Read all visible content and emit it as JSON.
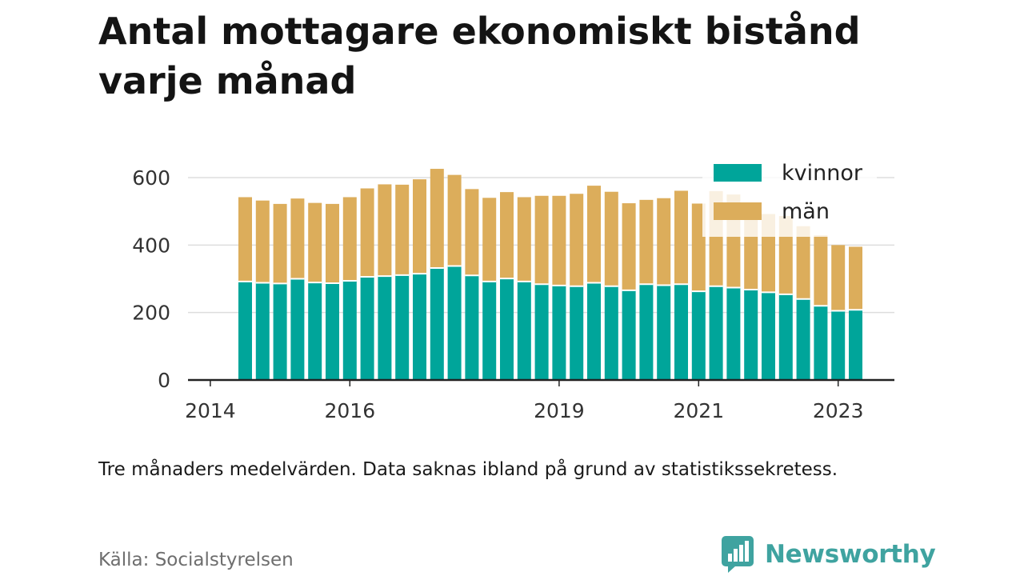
{
  "title_line1": "Antal mottagare ekonomiskt bistånd",
  "title_line2": "varje månad",
  "note": "Tre månaders medelvärden. Data saknas ibland på grund av statistikssekretess.",
  "source": "Källa: Socialstyrelsen",
  "brand": "Newsworthy",
  "colors": {
    "kvinnor": "#00a59a",
    "man": "#dcad5b",
    "brand": "#3fa3a0",
    "grid": "#dddddd",
    "axis": "#222222",
    "text": "#333333"
  },
  "chart_data": {
    "type": "bar",
    "stacked": true,
    "ylim": [
      0,
      600
    ],
    "yticks": [
      0,
      200,
      400,
      600
    ],
    "xticks": [
      "2014",
      "2016",
      "2019",
      "2021",
      "2023"
    ],
    "legend_position": "top-right",
    "grid": "horizontal",
    "categories": [
      "2014-07",
      "2014-10",
      "2015-01",
      "2015-04",
      "2015-07",
      "2015-10",
      "2016-01",
      "2016-04",
      "2016-07",
      "2016-10",
      "2017-01",
      "2017-04",
      "2017-07",
      "2017-10",
      "2018-01",
      "2018-04",
      "2018-07",
      "2018-10",
      "2019-01",
      "2019-04",
      "2019-07",
      "2019-10",
      "2020-01",
      "2020-04",
      "2020-07",
      "2020-10",
      "2021-01",
      "2021-04",
      "2021-07",
      "2021-10",
      "2022-01",
      "2022-04",
      "2022-07",
      "2022-10",
      "2023-01",
      "2023-04"
    ],
    "series": [
      {
        "name": "kvinnor",
        "values": [
          292,
          288,
          286,
          300,
          289,
          287,
          294,
          306,
          308,
          311,
          315,
          332,
          338,
          310,
          292,
          301,
          292,
          284,
          280,
          278,
          288,
          278,
          266,
          284,
          281,
          284,
          263,
          278,
          274,
          268,
          260,
          254,
          240,
          220,
          205,
          208
        ]
      },
      {
        "name": "män",
        "values": [
          250,
          244,
          236,
          238,
          236,
          235,
          248,
          262,
          272,
          268,
          280,
          294,
          270,
          256,
          248,
          256,
          250,
          262,
          266,
          274,
          288,
          280,
          258,
          250,
          258,
          277,
          260,
          282,
          276,
          249,
          232,
          232,
          216,
          209,
          195,
          187
        ]
      }
    ]
  }
}
